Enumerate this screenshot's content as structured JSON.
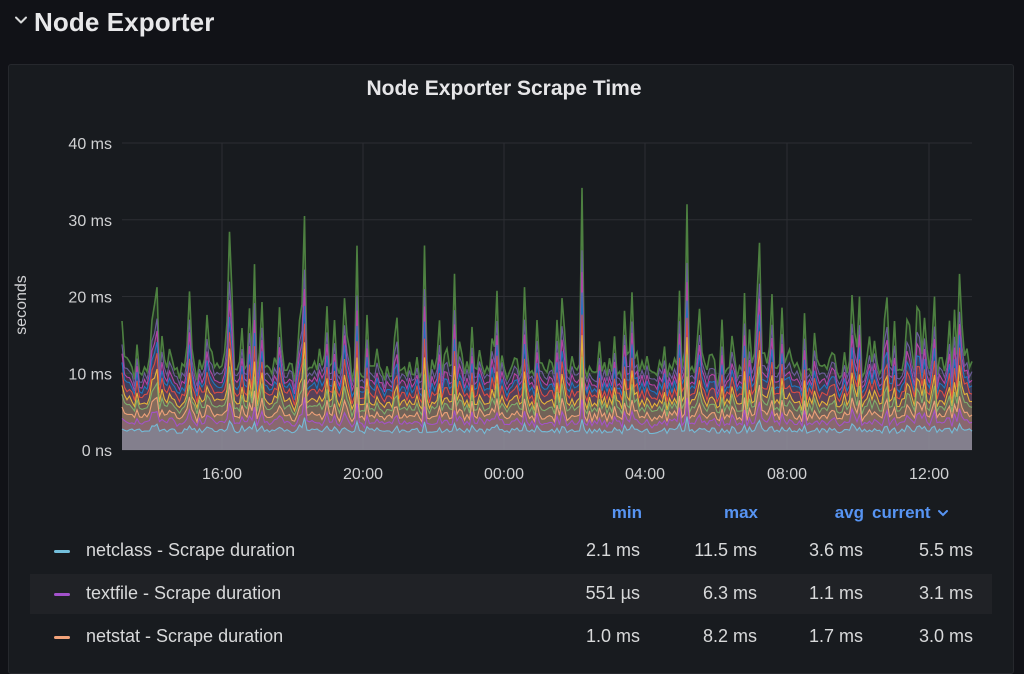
{
  "row": {
    "title": "Node Exporter"
  },
  "panel": {
    "title": "Node Exporter Scrape Time"
  },
  "chart_data": {
    "type": "area",
    "ylabel": "seconds",
    "yticks": [
      "0 ns",
      "10 ms",
      "20 ms",
      "30 ms",
      "40 ms"
    ],
    "ylim_ms": [
      0,
      40
    ],
    "xticks": [
      "16:00",
      "20:00",
      "00:00",
      "04:00",
      "08:00",
      "12:00"
    ],
    "grid": true,
    "stacked_series_count": 10,
    "series_colors": [
      "#73bfdb",
      "#a352cc",
      "#f2a37a",
      "#7eb26d",
      "#eab839",
      "#e24d42",
      "#1f78c1",
      "#ba43a9",
      "#705da0",
      "#508642"
    ],
    "peak_values_ms": [
      20,
      28,
      30,
      27,
      33.5,
      31.5,
      25,
      23.5
    ]
  },
  "legend": {
    "headers": {
      "min": "min",
      "max": "max",
      "avg": "avg",
      "current": "current"
    },
    "sort_icon": "chevron-down-icon",
    "rows": [
      {
        "name": "netclass - Scrape duration",
        "color": "#73bfdb",
        "min": "2.1 ms",
        "max": "11.5 ms",
        "avg": "3.6 ms",
        "current": "5.5 ms"
      },
      {
        "name": "textfile - Scrape duration",
        "color": "#a352cc",
        "min": "551 µs",
        "max": "6.3 ms",
        "avg": "1.1 ms",
        "current": "3.1 ms"
      },
      {
        "name": "netstat - Scrape duration",
        "color": "#f2a37a",
        "min": "1.0 ms",
        "max": "8.2 ms",
        "avg": "1.7 ms",
        "current": "3.0 ms"
      }
    ]
  }
}
